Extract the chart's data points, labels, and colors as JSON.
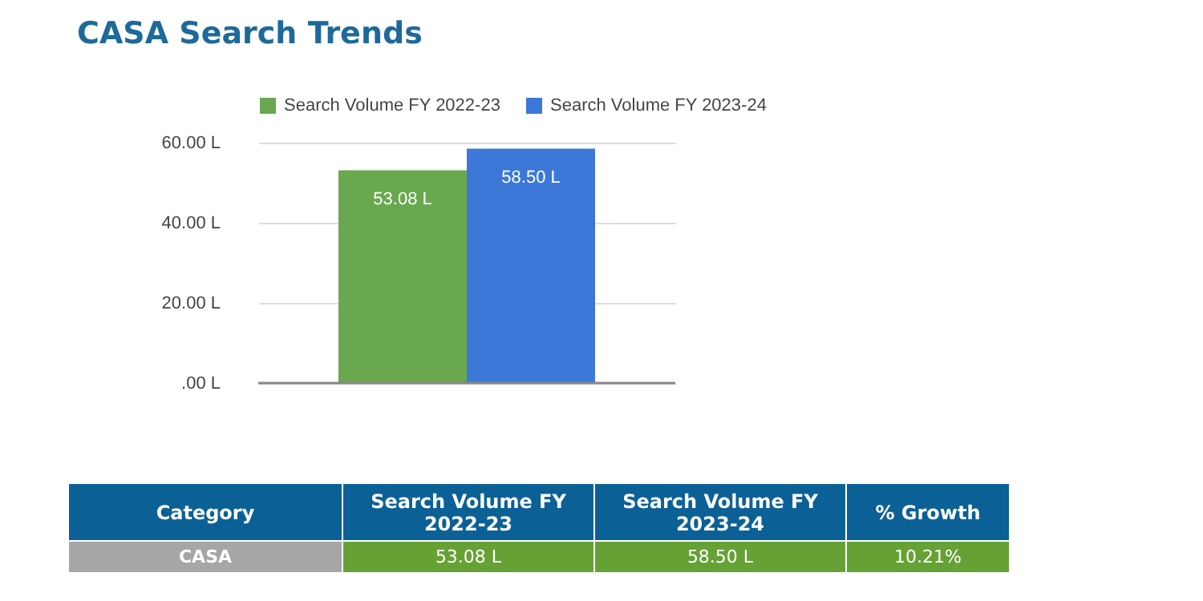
{
  "chart_data": {
    "type": "bar",
    "title": "CASA Search Trends",
    "categories": [
      null
    ],
    "series": [
      {
        "name": "Search Volume FY 2022-23",
        "color": "#6aa84f",
        "values": [
          53.08
        ],
        "value_labels": [
          "53.08 L"
        ]
      },
      {
        "name": "Search Volume FY 2023-24",
        "color": "#3c78d8",
        "values": [
          58.5
        ],
        "value_labels": [
          "58.50 L"
        ]
      }
    ],
    "ylim": [
      0,
      60
    ],
    "yticks": [
      {
        "value": 0,
        "label": ".00 L"
      },
      {
        "value": 20,
        "label": "20.00 L"
      },
      {
        "value": 40,
        "label": "40.00 L"
      },
      {
        "value": 60,
        "label": "60.00 L"
      }
    ],
    "grid": "y",
    "legend": "top",
    "tick_labels": "y",
    "annotations": [
      "Category",
      "Search Volume FY 2022-23",
      "Search Volume FY 2023-24",
      "% Growth",
      "CASA",
      "53.08 L",
      "58.50 L",
      "10.21%"
    ]
  }
}
